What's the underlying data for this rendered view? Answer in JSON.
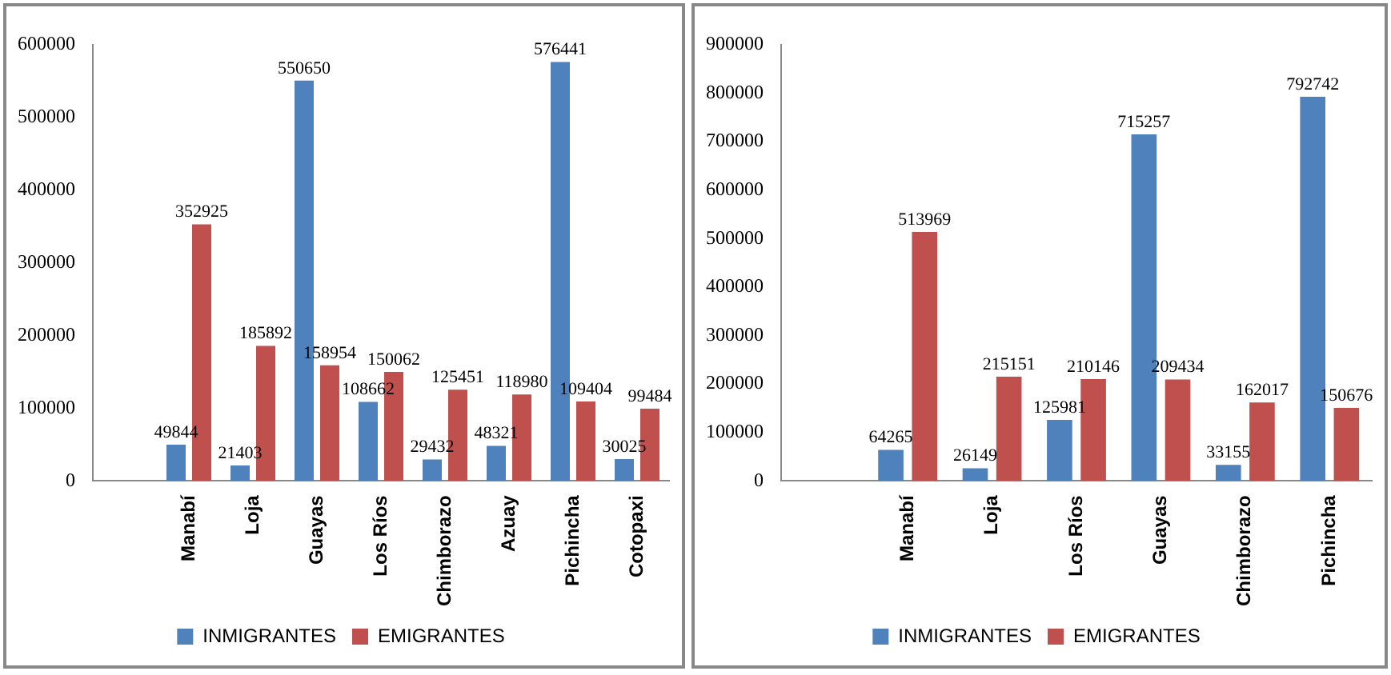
{
  "chart_data": [
    {
      "type": "bar",
      "categories": [
        null,
        "Manabí",
        "Loja",
        "Guayas",
        "Los Ríos",
        "Chimborazo",
        "Azuay",
        "Pichincha",
        "Cotopaxi"
      ],
      "series": [
        {
          "name": "INMIGRANTES",
          "color": "#4f81bd",
          "values": [
            null,
            49844,
            21403,
            550650,
            108662,
            29432,
            48321,
            576441,
            30025
          ]
        },
        {
          "name": "EMIGRANTES",
          "color": "#c0504d",
          "values": [
            null,
            352925,
            185892,
            158954,
            150062,
            125451,
            118980,
            109404,
            99484
          ]
        }
      ],
      "ylim": [
        0,
        600000
      ],
      "yticks": [
        0,
        100000,
        200000,
        300000,
        400000,
        500000,
        600000
      ],
      "data_labels": true,
      "legend": "bottom",
      "grid": false
    },
    {
      "type": "bar",
      "categories": [
        null,
        "Manabí",
        "Loja",
        "Los Ríos",
        "Guayas",
        "Chimborazo",
        "Pichincha"
      ],
      "series": [
        {
          "name": "INMIGRANTES",
          "color": "#4f81bd",
          "values": [
            null,
            64265,
            26149,
            125981,
            715257,
            33155,
            792742
          ]
        },
        {
          "name": "EMIGRANTES",
          "color": "#c0504d",
          "values": [
            null,
            513969,
            215151,
            210146,
            209434,
            162017,
            150676
          ]
        }
      ],
      "ylim": [
        0,
        900000
      ],
      "yticks": [
        0,
        100000,
        200000,
        300000,
        400000,
        500000,
        600000,
        700000,
        800000,
        900000
      ],
      "data_labels": true,
      "legend": "bottom",
      "grid": false
    }
  ]
}
